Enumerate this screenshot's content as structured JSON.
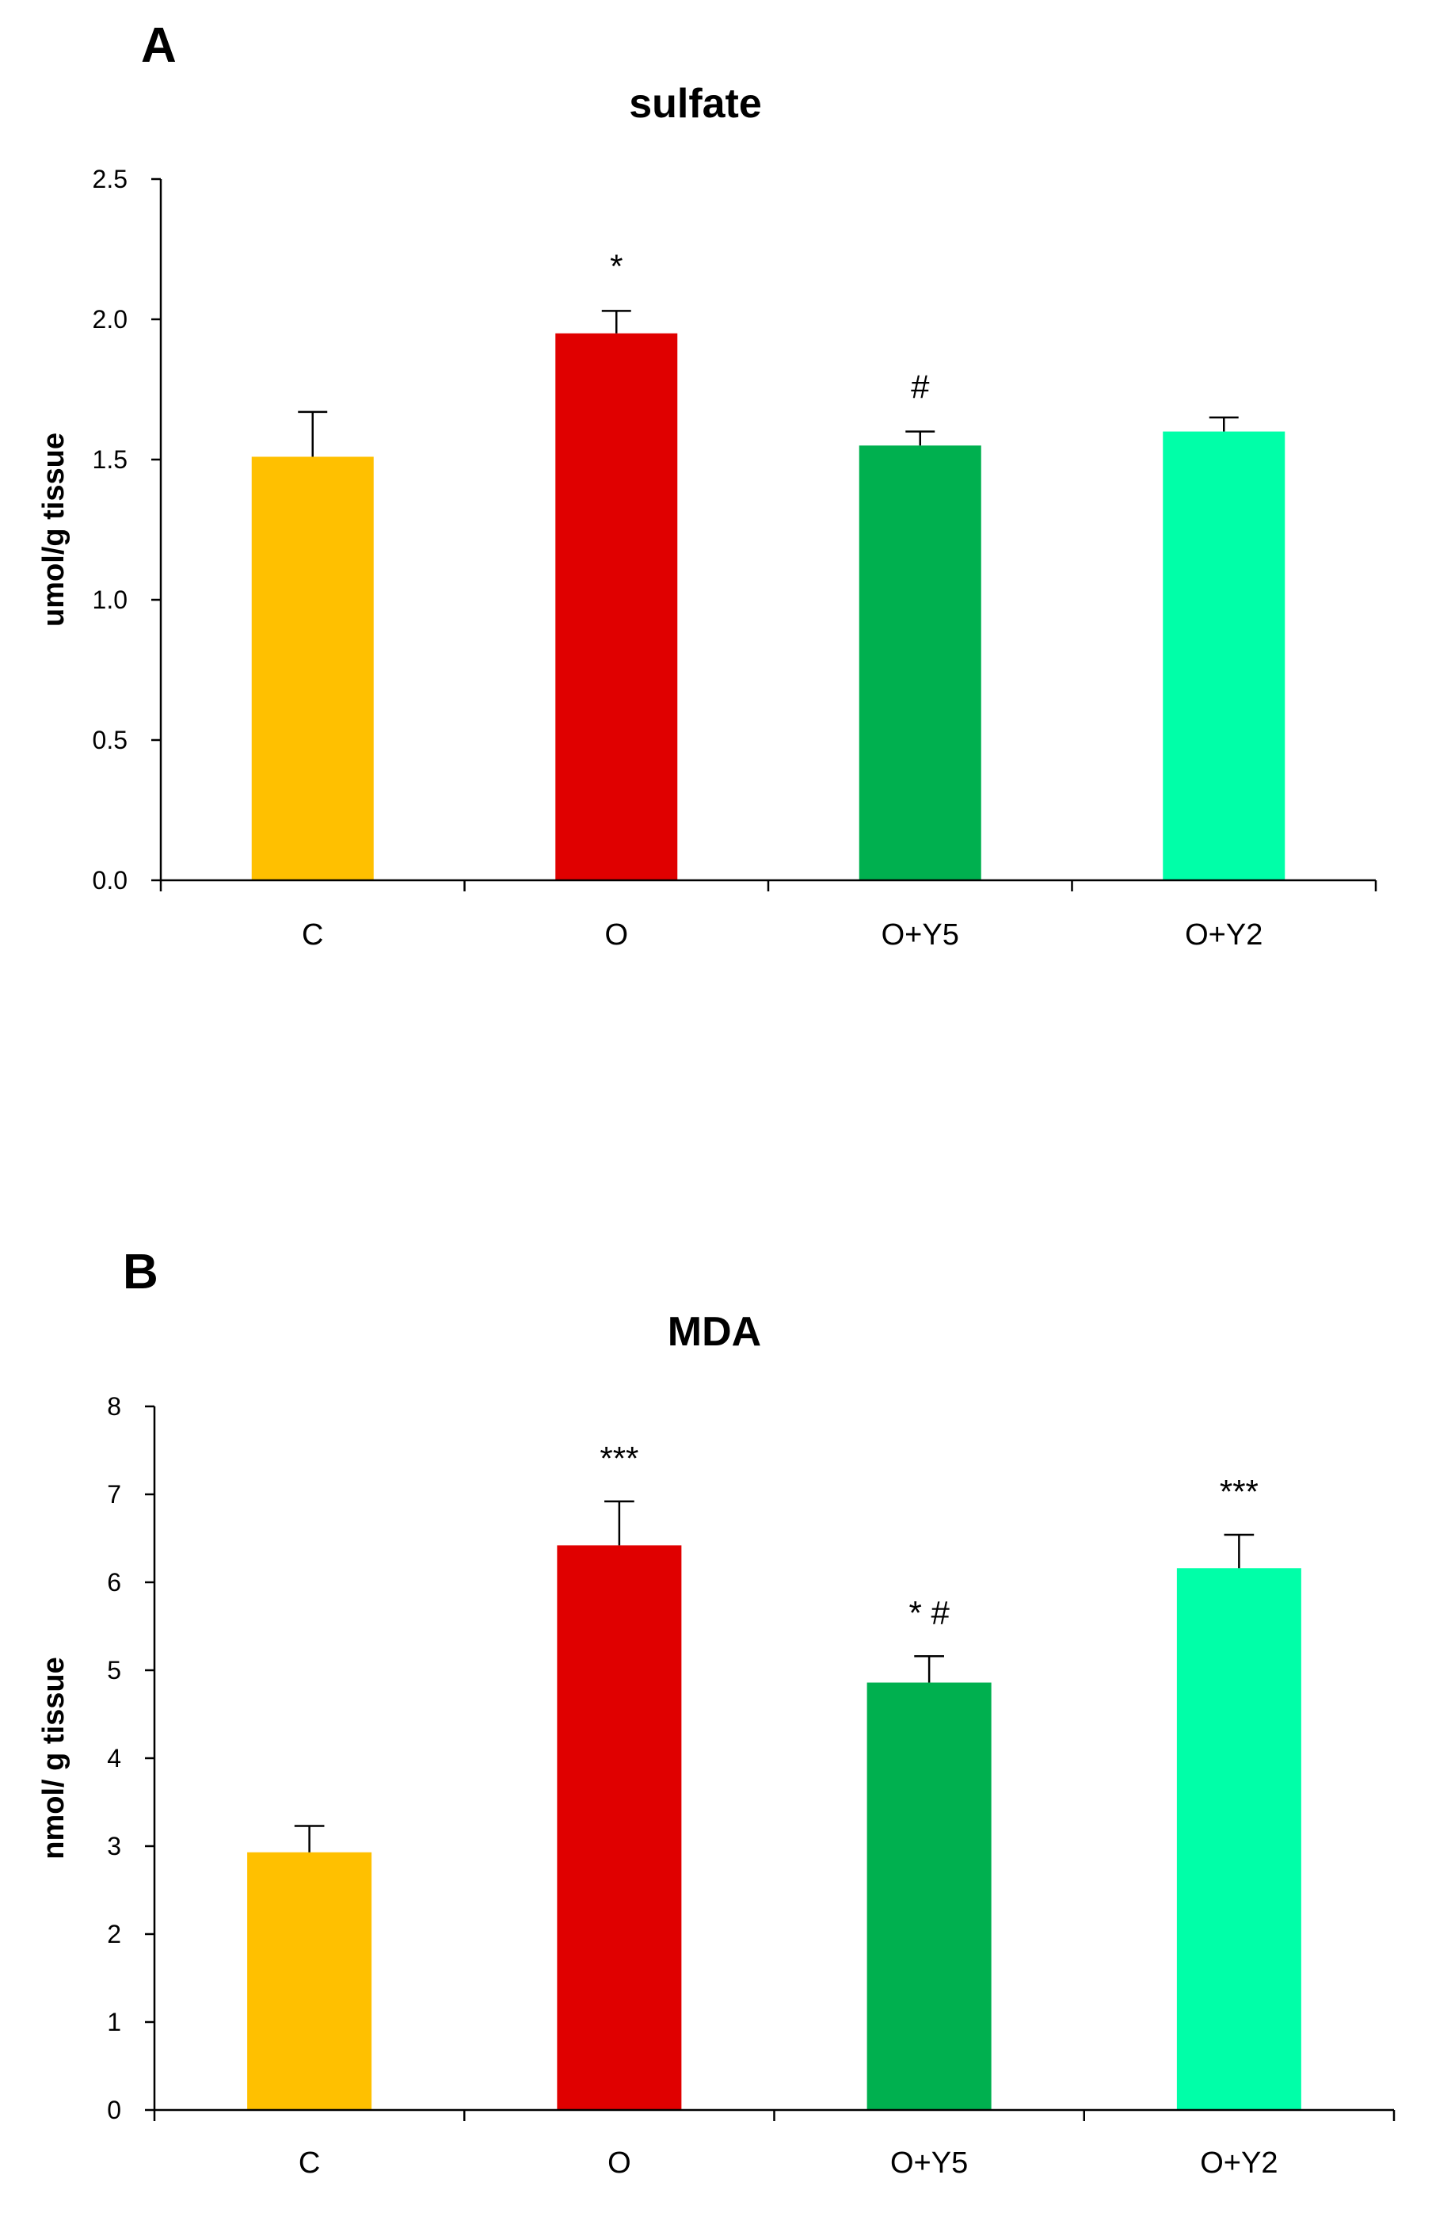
{
  "chart_data": [
    {
      "type": "bar",
      "panel_letter": "A",
      "title": "sulfate",
      "xlabel": "",
      "ylabel": "umol/g tissue",
      "ylim": [
        0,
        2.5
      ],
      "yticks": [
        "0.0",
        "0.5",
        "1.0",
        "1.5",
        "2.0",
        "2.5"
      ],
      "categories": [
        "C",
        "O",
        "O+Y5",
        "O+Y2"
      ],
      "values": [
        1.51,
        1.95,
        1.55,
        1.6
      ],
      "errors": [
        0.16,
        0.08,
        0.05,
        0.05
      ],
      "colors": [
        "#FFC000",
        "#E00000",
        "#00B04F",
        "#00FFA8"
      ],
      "annotations": [
        {
          "category": "O",
          "text": "*"
        },
        {
          "category": "O+Y5",
          "text": "#"
        }
      ]
    },
    {
      "type": "bar",
      "panel_letter": "B",
      "title": "MDA",
      "xlabel": "",
      "ylabel": "nmol/ g tissue",
      "ylim": [
        0,
        8
      ],
      "yticks": [
        "0",
        "1",
        "2",
        "3",
        "4",
        "5",
        "6",
        "7",
        "8"
      ],
      "categories": [
        "C",
        "O",
        "O+Y5",
        "O+Y2"
      ],
      "values": [
        2.93,
        6.42,
        4.86,
        6.16
      ],
      "errors": [
        0.3,
        0.5,
        0.3,
        0.38
      ],
      "colors": [
        "#FFC000",
        "#E00000",
        "#00B04F",
        "#00FFA8"
      ],
      "annotations": [
        {
          "category": "O",
          "text": "***"
        },
        {
          "category": "O+Y5",
          "text": "* #"
        },
        {
          "category": "O+Y2",
          "text": "***"
        }
      ]
    }
  ]
}
